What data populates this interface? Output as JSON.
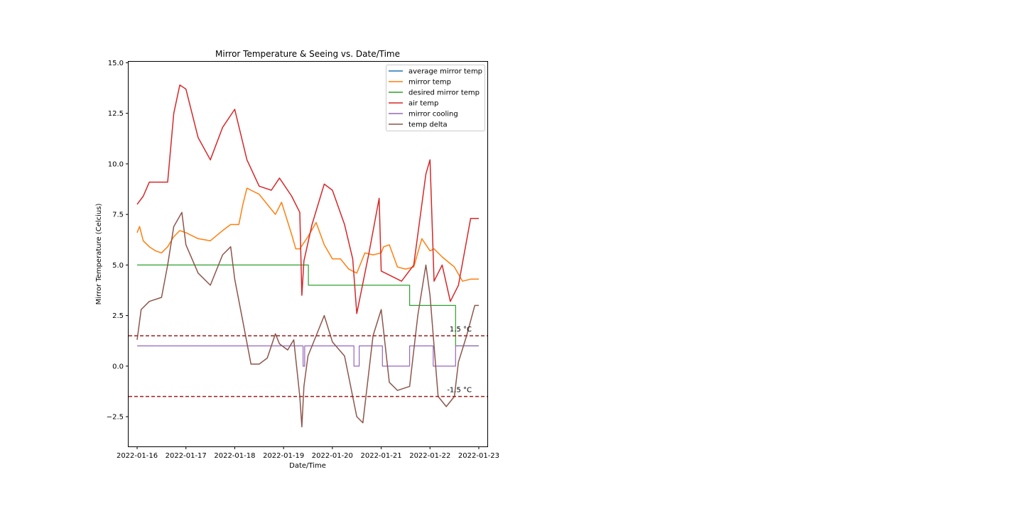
{
  "chart_data": {
    "type": "line",
    "title": "Mirror Temperature & Seeing vs. Date/Time",
    "xlabel": "Date/Time",
    "ylabel": "Mirror Temperature (Celcius)",
    "xlim": [
      "2022-01-15T19:48",
      "2022-01-23T04:12"
    ],
    "ylim": [
      -3.97,
      15.05
    ],
    "xticks": [
      "2022-01-16",
      "2022-01-17",
      "2022-01-18",
      "2022-01-19",
      "2022-01-20",
      "2022-01-21",
      "2022-01-22",
      "2022-01-23"
    ],
    "yticks": [
      -2.5,
      0.0,
      2.5,
      5.0,
      7.5,
      10.0,
      12.5,
      15.0
    ],
    "ytick_labels": [
      "−2.5",
      "0.0",
      "2.5",
      "5.0",
      "7.5",
      "10.0",
      "12.5",
      "15.0"
    ],
    "grid": false,
    "legend": {
      "placement": "top-right"
    },
    "series": [
      {
        "name": "average mirror temp",
        "color": "#1f77b4",
        "x": [],
        "y": []
      },
      {
        "name": "mirror temp",
        "color": "#ff7f0e",
        "x": [
          "2022-01-16T00:00",
          "2022-01-16T01:12",
          "2022-01-16T03:00",
          "2022-01-16T06:00",
          "2022-01-16T09:00",
          "2022-01-16T12:00",
          "2022-01-16T15:00",
          "2022-01-16T18:00",
          "2022-01-16T21:00",
          "2022-01-17T00:00",
          "2022-01-17T06:00",
          "2022-01-17T12:00",
          "2022-01-17T18:00",
          "2022-01-17T22:00",
          "2022-01-18T02:00",
          "2022-01-18T04:00",
          "2022-01-18T06:00",
          "2022-01-18T08:00",
          "2022-01-18T12:00",
          "2022-01-18T16:00",
          "2022-01-18T20:00",
          "2022-01-18T23:00",
          "2022-01-19T01:12",
          "2022-01-19T04:00",
          "2022-01-19T06:00",
          "2022-01-19T08:00",
          "2022-01-19T12:00",
          "2022-01-19T16:00",
          "2022-01-19T20:00",
          "2022-01-20T00:00",
          "2022-01-20T04:00",
          "2022-01-20T08:00",
          "2022-01-20T12:00",
          "2022-01-20T16:00",
          "2022-01-20T20:00",
          "2022-01-21T00:00",
          "2022-01-21T01:12",
          "2022-01-21T04:00",
          "2022-01-21T08:00",
          "2022-01-21T12:00",
          "2022-01-21T16:00",
          "2022-01-21T20:00",
          "2022-01-22T00:00",
          "2022-01-22T02:00",
          "2022-01-22T06:00",
          "2022-01-22T12:00",
          "2022-01-22T16:00",
          "2022-01-22T20:00",
          "2022-01-23T00:00"
        ],
        "y": [
          6.6,
          6.9,
          6.2,
          5.9,
          5.7,
          5.6,
          5.9,
          6.4,
          6.7,
          6.6,
          6.3,
          6.2,
          6.7,
          7.0,
          7.0,
          8.0,
          8.8,
          8.7,
          8.5,
          8.0,
          7.5,
          8.1,
          7.4,
          6.5,
          5.8,
          5.8,
          6.4,
          7.1,
          6.0,
          5.3,
          5.3,
          4.8,
          4.6,
          5.6,
          5.5,
          5.6,
          5.9,
          6.0,
          4.9,
          4.8,
          4.9,
          6.3,
          5.7,
          5.8,
          5.4,
          4.9,
          4.2,
          4.3,
          4.3
        ]
      },
      {
        "name": "desired mirror temp",
        "color": "#2ca02c",
        "x": [
          "2022-01-16T00:00",
          "2022-01-19T12:12",
          "2022-01-19T12:12",
          "2022-01-21T14:00",
          "2022-01-21T14:00",
          "2022-01-22T12:36",
          "2022-01-22T12:36",
          "2022-01-23T00:00"
        ],
        "y": [
          5,
          5,
          4,
          4,
          3,
          3,
          1,
          1
        ]
      },
      {
        "name": "air temp",
        "color": "#d62728",
        "x": [
          "2022-01-16T00:00",
          "2022-01-16T03:00",
          "2022-01-16T06:00",
          "2022-01-16T09:00",
          "2022-01-16T15:00",
          "2022-01-16T18:00",
          "2022-01-16T21:00",
          "2022-01-17T00:00",
          "2022-01-17T06:00",
          "2022-01-17T12:00",
          "2022-01-17T18:00",
          "2022-01-18T00:00",
          "2022-01-18T06:00",
          "2022-01-18T12:00",
          "2022-01-18T18:00",
          "2022-01-18T22:00",
          "2022-01-19T04:00",
          "2022-01-19T08:00",
          "2022-01-19T09:00",
          "2022-01-19T10:00",
          "2022-01-19T14:00",
          "2022-01-19T20:00",
          "2022-01-20T00:00",
          "2022-01-20T06:00",
          "2022-01-20T10:00",
          "2022-01-20T12:00",
          "2022-01-20T18:00",
          "2022-01-20T23:00",
          "2022-01-21T00:00",
          "2022-01-21T04:00",
          "2022-01-21T10:00",
          "2022-01-21T16:00",
          "2022-01-21T22:00",
          "2022-01-22T00:00",
          "2022-01-22T02:00",
          "2022-01-22T06:00",
          "2022-01-22T10:00",
          "2022-01-22T14:00",
          "2022-01-22T20:00",
          "2022-01-23T00:00"
        ],
        "y": [
          8.0,
          8.4,
          9.1,
          9.1,
          9.1,
          12.5,
          13.9,
          13.7,
          11.3,
          10.2,
          11.8,
          12.7,
          10.2,
          8.9,
          8.7,
          9.3,
          8.4,
          7.6,
          3.5,
          5.2,
          7.0,
          9.0,
          8.7,
          7.0,
          5.3,
          2.6,
          5.6,
          8.3,
          4.7,
          4.5,
          4.2,
          5.0,
          9.5,
          10.2,
          4.2,
          5.0,
          3.2,
          4.0,
          7.3,
          7.3
        ]
      },
      {
        "name": "mirror cooling",
        "color": "#9467bd",
        "x": [
          "2022-01-16T00:00",
          "2022-01-19T09:36",
          "2022-01-19T09:36",
          "2022-01-19T10:24",
          "2022-01-19T10:24",
          "2022-01-20T10:36",
          "2022-01-20T10:36",
          "2022-01-20T13:12",
          "2022-01-20T13:12",
          "2022-01-21T00:36",
          "2022-01-21T00:36",
          "2022-01-21T14:00",
          "2022-01-21T14:00",
          "2022-01-22T01:36",
          "2022-01-22T01:36",
          "2022-01-22T12:36",
          "2022-01-22T12:36",
          "2022-01-23T00:00"
        ],
        "y": [
          1,
          1,
          0,
          0,
          1,
          1,
          0,
          0,
          1,
          1,
          0,
          0,
          1,
          1,
          0,
          0,
          1,
          1
        ]
      },
      {
        "name": "temp delta",
        "color": "#8c564b",
        "x": [
          "2022-01-16T00:00",
          "2022-01-16T02:00",
          "2022-01-16T06:00",
          "2022-01-16T12:00",
          "2022-01-16T15:00",
          "2022-01-16T18:00",
          "2022-01-16T22:00",
          "2022-01-17T00:00",
          "2022-01-17T06:00",
          "2022-01-17T12:00",
          "2022-01-17T18:00",
          "2022-01-17T22:00",
          "2022-01-18T00:00",
          "2022-01-18T04:00",
          "2022-01-18T08:00",
          "2022-01-18T12:00",
          "2022-01-18T16:00",
          "2022-01-18T20:00",
          "2022-01-18T22:00",
          "2022-01-19T02:00",
          "2022-01-19T05:00",
          "2022-01-19T08:00",
          "2022-01-19T09:00",
          "2022-01-19T10:00",
          "2022-01-19T12:00",
          "2022-01-19T16:00",
          "2022-01-19T20:00",
          "2022-01-20T00:00",
          "2022-01-20T06:00",
          "2022-01-20T12:00",
          "2022-01-20T15:00",
          "2022-01-20T20:00",
          "2022-01-21T00:00",
          "2022-01-21T04:00",
          "2022-01-21T08:00",
          "2022-01-21T14:00",
          "2022-01-21T18:00",
          "2022-01-21T22:00",
          "2022-01-22T00:00",
          "2022-01-22T04:00",
          "2022-01-22T08:00",
          "2022-01-22T12:00",
          "2022-01-22T14:00",
          "2022-01-22T18:00",
          "2022-01-22T22:00",
          "2022-01-23T00:00"
        ],
        "y": [
          1.3,
          2.8,
          3.2,
          3.4,
          5.0,
          6.9,
          7.6,
          6.0,
          4.6,
          4.0,
          5.5,
          5.9,
          4.3,
          2.2,
          0.1,
          0.1,
          0.4,
          1.6,
          1.1,
          0.8,
          1.3,
          -1.5,
          -3.0,
          -1.0,
          0.5,
          1.5,
          2.5,
          1.2,
          0.5,
          -2.5,
          -2.8,
          1.5,
          2.8,
          -0.8,
          -1.2,
          -1.0,
          2.5,
          5.0,
          3.5,
          -1.5,
          -2.0,
          -1.5,
          0.2,
          1.5,
          3.0,
          3.0
        ]
      }
    ],
    "reference_lines": [
      {
        "y": 1.5,
        "label": "1.5 °C",
        "color": "#a11d1d",
        "style": "dashed"
      },
      {
        "y": -1.5,
        "label": "-1.5 °C",
        "color": "#a11d1d",
        "style": "dashed"
      }
    ]
  }
}
